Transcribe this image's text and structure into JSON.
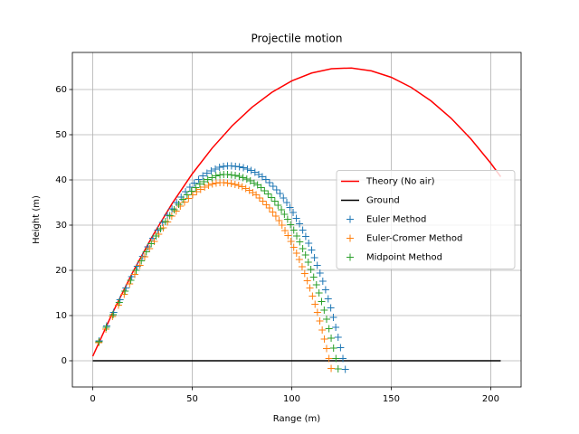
{
  "chart_data": {
    "type": "line",
    "title": "Projectile motion",
    "x_label": "Range (m)",
    "y_label": "Height (m)",
    "xlim": [
      -10.25,
      215.25
    ],
    "ylim": [
      -5.8,
      68.2
    ],
    "xticks": [
      0,
      50,
      100,
      150,
      200
    ],
    "yticks": [
      0,
      10,
      20,
      30,
      40,
      50,
      60
    ],
    "grid": true,
    "legend": "center right",
    "series": [
      {
        "name": "Theory (No air)",
        "color": "#ff0000",
        "style": "line",
        "x": [
          0,
          10,
          20,
          30,
          40,
          50,
          60,
          70,
          80,
          90,
          100,
          110,
          120,
          130,
          140,
          150,
          160,
          170,
          180,
          190,
          200,
          205
        ],
        "values": [
          1,
          10.65,
          19.51,
          27.58,
          34.86,
          41.35,
          47.04,
          51.95,
          56.06,
          59.38,
          61.91,
          63.65,
          64.6,
          64.76,
          64.12,
          62.7,
          60.48,
          57.47,
          53.67,
          49.08,
          43.7,
          40.71
        ]
      },
      {
        "name": "Ground",
        "color": "#000000",
        "style": "line",
        "x": [
          0,
          205
        ],
        "values": [
          0,
          0
        ]
      },
      {
        "name": "Euler Method",
        "color": "#1f77b4",
        "style": "plus",
        "x": [
          3.2,
          7.0,
          10.5,
          13.7,
          16.7,
          19.6,
          22.4,
          25.1,
          27.7,
          30.2,
          32.7,
          35.1,
          37.5,
          39.8,
          42.1,
          44.4,
          46.6,
          48.8,
          51.0,
          53.2,
          55.3,
          57.4,
          59.5,
          61.6,
          63.7,
          65.7,
          67.7,
          69.7,
          71.7,
          73.7,
          75.7,
          77.7,
          79.6,
          81.5,
          83.4,
          85.2,
          87.0,
          88.8,
          90.6,
          92.4,
          94.1,
          95.8,
          97.5,
          99.1,
          100.7,
          102.3,
          103.9,
          105.5,
          107.0,
          108.5,
          110.0,
          111.4,
          112.8,
          114.2,
          115.6,
          117.0,
          118.3,
          119.6,
          120.9,
          122.1,
          123.3,
          124.5,
          125.7,
          126.9
        ],
        "values": [
          4.4,
          7.7,
          10.7,
          13.5,
          16.1,
          18.6,
          20.9,
          23.1,
          25.2,
          27.1,
          28.9,
          30.6,
          32.2,
          33.6,
          35.0,
          36.2,
          37.4,
          38.4,
          39.3,
          40.1,
          40.9,
          41.5,
          42.0,
          42.4,
          42.8,
          43.0,
          43.1,
          43.1,
          43.0,
          42.9,
          42.7,
          42.4,
          42.1,
          41.7,
          41.2,
          40.7,
          40.1,
          39.4,
          38.6,
          37.8,
          37.0,
          36.0,
          35.0,
          33.9,
          32.8,
          31.5,
          30.3,
          28.9,
          27.5,
          26.0,
          24.5,
          22.8,
          21.1,
          19.4,
          17.6,
          15.7,
          13.7,
          11.7,
          9.6,
          7.4,
          5.2,
          2.9,
          0.5,
          -1.9
        ]
      },
      {
        "name": "Euler-Cromer Method",
        "color": "#ff7f0e",
        "style": "plus",
        "x": [
          3.0,
          6.6,
          9.9,
          12.9,
          15.8,
          18.5,
          21.1,
          23.7,
          26.1,
          28.5,
          30.9,
          33.1,
          35.4,
          37.6,
          39.7,
          41.9,
          44.0,
          46.1,
          48.1,
          50.2,
          52.2,
          54.2,
          56.2,
          58.2,
          60.1,
          62.0,
          63.9,
          65.8,
          67.7,
          69.6,
          71.5,
          73.3,
          75.1,
          76.9,
          78.7,
          80.4,
          82.1,
          83.8,
          85.5,
          87.2,
          88.8,
          90.4,
          92.0,
          93.6,
          95.1,
          96.6,
          98.1,
          99.6,
          101.0,
          102.4,
          103.8,
          105.2,
          106.5,
          107.8,
          109.1,
          110.4,
          111.7,
          112.9,
          114.1,
          115.3,
          116.4,
          117.5,
          118.7,
          119.8
        ],
        "values": [
          4.0,
          7.0,
          9.8,
          12.3,
          14.7,
          17.0,
          19.1,
          21.1,
          23.0,
          24.8,
          26.4,
          28.0,
          29.4,
          30.7,
          32.0,
          33.1,
          34.2,
          35.1,
          35.9,
          36.7,
          37.4,
          37.9,
          38.4,
          38.8,
          39.1,
          39.3,
          39.4,
          39.4,
          39.3,
          39.2,
          39.0,
          38.8,
          38.5,
          38.1,
          37.7,
          37.2,
          36.7,
          36.0,
          35.3,
          34.5,
          33.8,
          32.9,
          32.0,
          31.0,
          30.0,
          28.8,
          27.7,
          26.4,
          25.1,
          23.8,
          22.4,
          20.8,
          19.3,
          17.7,
          16.1,
          14.3,
          12.5,
          10.7,
          8.8,
          6.8,
          4.8,
          2.7,
          0.5,
          -1.7
        ]
      },
      {
        "name": "Midpoint Method",
        "color": "#2ca02c",
        "style": "plus",
        "x": [
          3.1,
          6.8,
          10.2,
          13.3,
          16.2,
          19.1,
          21.8,
          24.4,
          26.9,
          29.4,
          31.8,
          34.1,
          36.5,
          38.7,
          40.9,
          43.2,
          45.3,
          47.4,
          49.6,
          51.7,
          53.8,
          55.8,
          57.8,
          59.9,
          61.9,
          63.9,
          65.8,
          67.7,
          69.7,
          71.6,
          73.6,
          75.5,
          77.4,
          79.2,
          81.1,
          82.8,
          84.6,
          86.3,
          88.1,
          89.8,
          91.5,
          93.1,
          94.8,
          96.3,
          97.9,
          99.4,
          101.0,
          102.5,
          104.0,
          105.5,
          106.9,
          108.3,
          109.6,
          111.0,
          112.4,
          113.7,
          115.0,
          116.3,
          117.5,
          118.7,
          119.8,
          121.0,
          122.2,
          123.3
        ],
        "values": [
          4.2,
          7.4,
          10.2,
          12.9,
          15.4,
          17.8,
          20.0,
          22.1,
          24.1,
          25.9,
          27.6,
          29.2,
          30.8,
          32.1,
          33.4,
          34.6,
          35.7,
          36.7,
          37.5,
          38.3,
          39.1,
          39.6,
          40.1,
          40.5,
          40.9,
          41.1,
          41.2,
          41.2,
          41.1,
          41.0,
          40.8,
          40.5,
          40.2,
          39.8,
          39.3,
          38.9,
          38.3,
          37.6,
          36.9,
          36.1,
          35.3,
          34.4,
          33.4,
          32.4,
          31.3,
          30.1,
          28.9,
          27.6,
          26.3,
          24.8,
          23.4,
          21.8,
          20.2,
          18.5,
          16.8,
          15.0,
          13.1,
          11.2,
          9.2,
          7.1,
          5.0,
          2.8,
          0.5,
          -1.8
        ]
      }
    ]
  }
}
